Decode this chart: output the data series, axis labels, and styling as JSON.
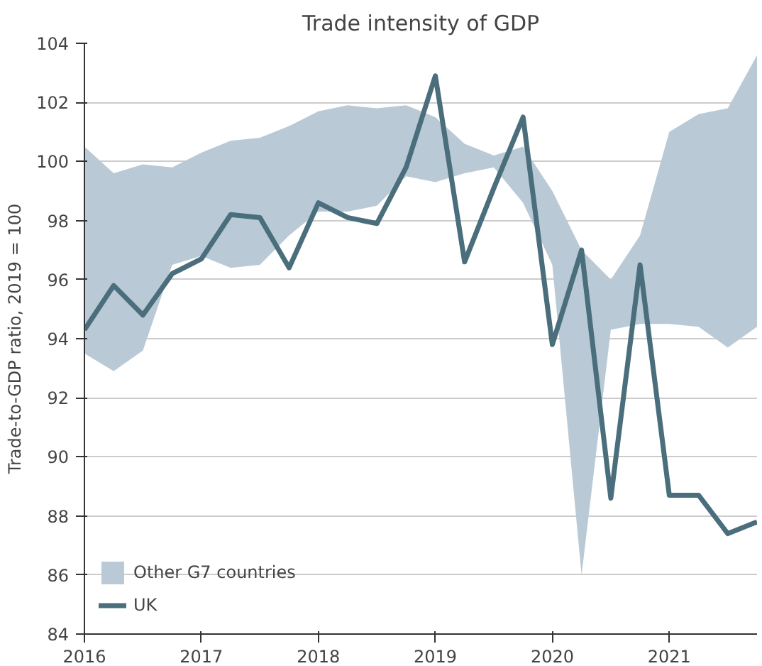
{
  "chart_data": {
    "type": "line",
    "title": "Trade intensity of GDP",
    "ylabel": "Trade-to-GDP ratio, 2019 = 100",
    "xlim": [
      2016,
      2021.75
    ],
    "xticks": [
      2016,
      2017,
      2018,
      2019,
      2020,
      2021
    ],
    "ylim": [
      84,
      104
    ],
    "yticks": [
      84,
      86,
      88,
      90,
      92,
      94,
      96,
      98,
      100,
      102,
      104
    ],
    "grid": "y",
    "legend": "bottom left",
    "series": [
      {
        "name": "Other G7 countries",
        "color": "#b9cad6",
        "x": [
          2016,
          2016.25,
          2016.5,
          2016.75,
          2017,
          2017.25,
          2017.5,
          2017.75,
          2018,
          2018.25,
          2018.5,
          2018.75,
          2019,
          2019.25,
          2019.5,
          2019.75,
          2020,
          2020.25,
          2020.5,
          2020.75,
          2021,
          2021.25,
          2021.5,
          2021.75
        ],
        "lower": [
          93.5,
          92.9,
          93.6,
          96.5,
          96.8,
          96.4,
          96.5,
          97.5,
          98.3,
          98.3,
          98.5,
          99.5,
          99.3,
          99.6,
          99.8,
          98.6,
          96.5,
          86.0,
          94.3,
          94.5,
          94.5,
          94.4,
          93.7,
          94.4
        ],
        "values": [
          null,
          null,
          null,
          null,
          null,
          null,
          null,
          null,
          null,
          null,
          null,
          null,
          null,
          null,
          null,
          null,
          null,
          null,
          null,
          null,
          null,
          null,
          null,
          null
        ],
        "upper": [
          100.5,
          99.6,
          99.9,
          99.8,
          100.3,
          100.7,
          100.8,
          101.2,
          101.7,
          101.9,
          101.8,
          101.9,
          101.5,
          100.6,
          100.2,
          100.5,
          99.0,
          97.0,
          96.0,
          97.5,
          101.0,
          101.6,
          101.8,
          103.6
        ]
      },
      {
        "name": "UK",
        "type": "line",
        "color": "#4b6e7c",
        "x": [
          2016,
          2016.25,
          2016.5,
          2016.75,
          2017,
          2017.25,
          2017.5,
          2017.75,
          2018,
          2018.25,
          2018.5,
          2018.75,
          2019,
          2019.25,
          2019.5,
          2019.75,
          2020,
          2020.25,
          2020.5,
          2020.75,
          2021,
          2021.25,
          2021.5,
          2021.75
        ],
        "values": [
          94.3,
          95.8,
          94.8,
          96.2,
          96.7,
          98.2,
          98.1,
          96.4,
          98.6,
          98.1,
          97.9,
          99.8,
          102.9,
          96.6,
          99.1,
          101.5,
          93.8,
          97.0,
          88.6,
          96.5,
          88.7,
          88.7,
          87.4,
          87.8
        ]
      }
    ]
  }
}
